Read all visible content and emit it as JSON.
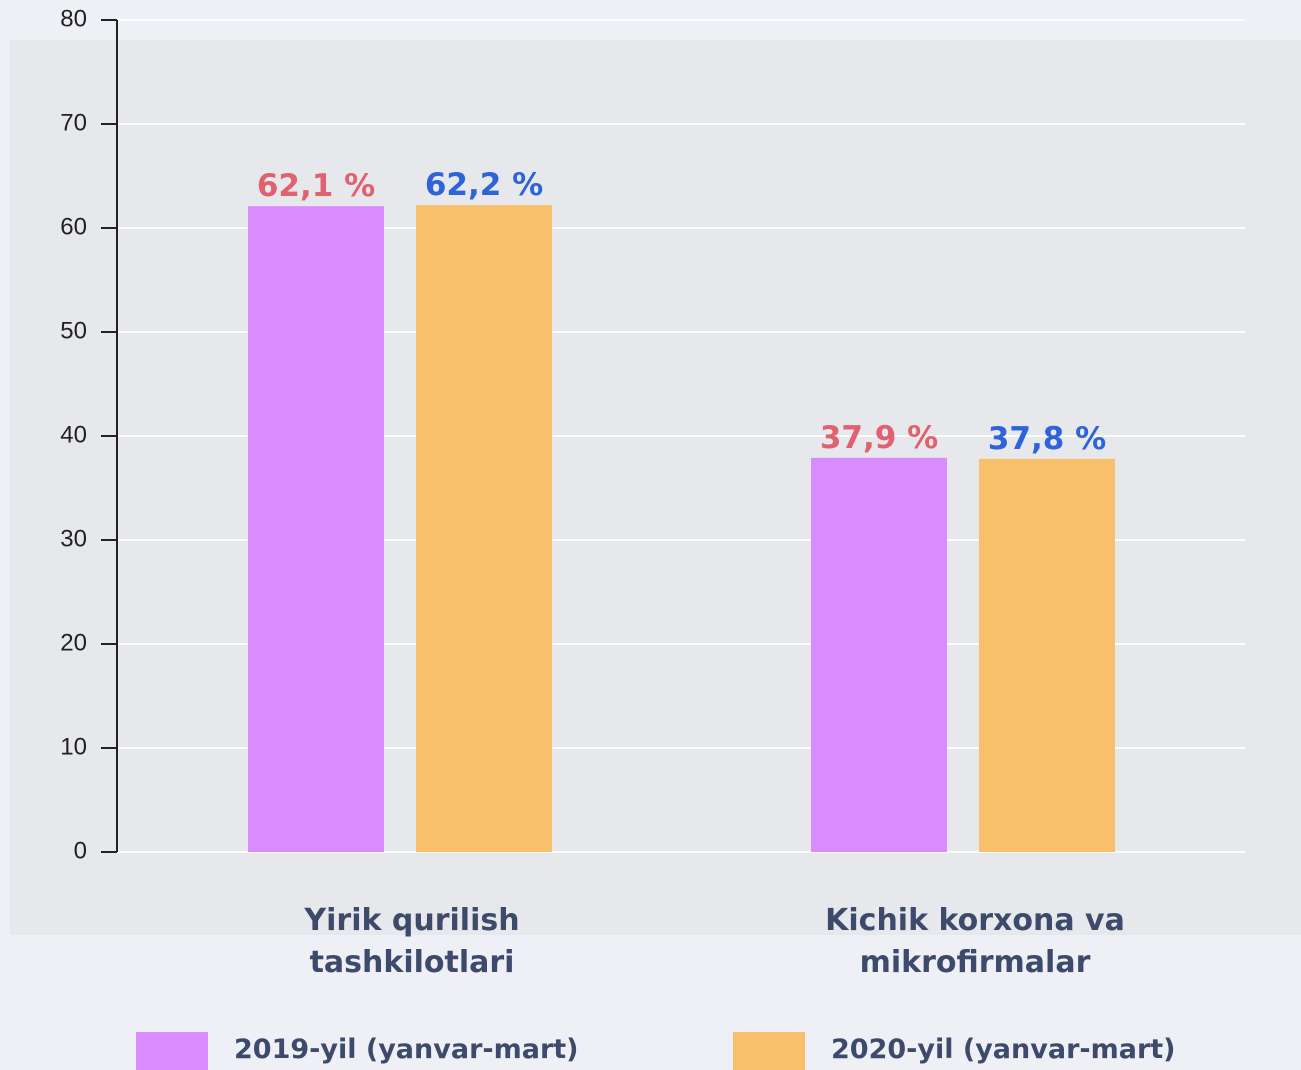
{
  "chart_data": {
    "type": "bar",
    "categories": [
      "Yirik qurilish tashkilotlari",
      "Kichik korxona va mikrofirmalar"
    ],
    "series": [
      {
        "name": "2019-yil (yanvar-mart)",
        "color": "#d98cff",
        "label_color": "#e0616f",
        "values": [
          62.1,
          37.9
        ],
        "value_labels": [
          "62,1 %",
          "37,9 %"
        ]
      },
      {
        "name": "2020-yil (yanvar-mart)",
        "color": "#f9c06b",
        "label_color": "#2f63d8",
        "values": [
          62.2,
          37.8
        ],
        "value_labels": [
          "62,2 %",
          "37,8 %"
        ]
      }
    ],
    "ylim": [
      0,
      80
    ],
    "yticks": [
      0,
      10,
      20,
      30,
      40,
      50,
      60,
      70,
      80
    ],
    "grid": true
  }
}
